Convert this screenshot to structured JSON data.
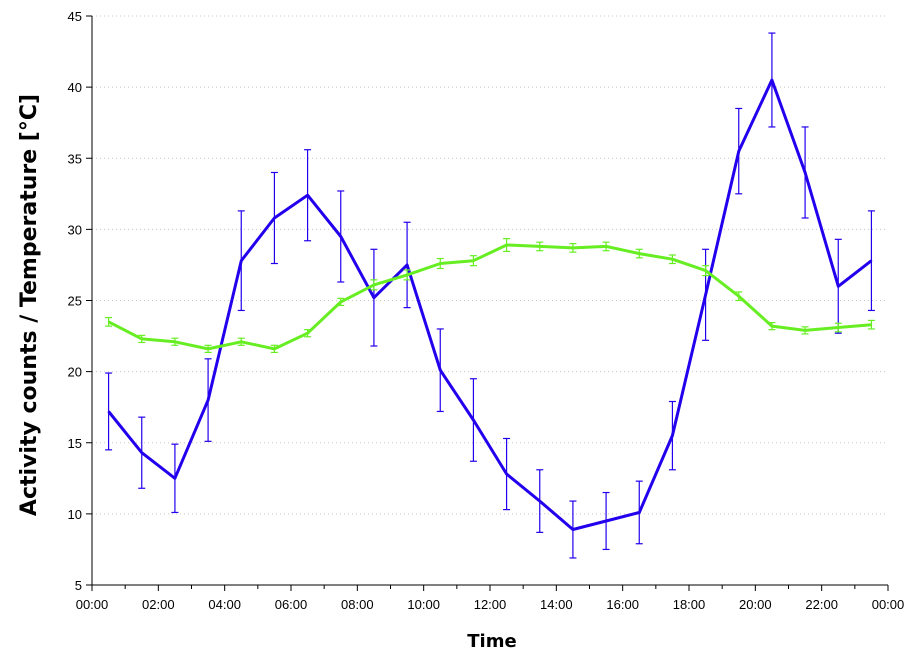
{
  "chart_data": {
    "type": "line",
    "xlabel": "Time",
    "ylabel": "Activity counts / Temperature [°C]",
    "x_tick_labels": [
      "00:00",
      "02:00",
      "04:00",
      "06:00",
      "08:00",
      "10:00",
      "12:00",
      "14:00",
      "16:00",
      "18:00",
      "20:00",
      "22:00",
      "00:00"
    ],
    "y_ticks": [
      5,
      10,
      15,
      20,
      25,
      30,
      35,
      40,
      45
    ],
    "xlim_hours": [
      0,
      24
    ],
    "ylim": [
      5,
      45
    ],
    "grid": "horizontal dotted",
    "legend": "none",
    "x_hours": [
      0.5,
      1.5,
      2.5,
      3.5,
      4.5,
      5.5,
      6.5,
      7.5,
      8.5,
      9.5,
      10.5,
      11.5,
      12.5,
      13.5,
      14.5,
      15.5,
      16.5,
      17.5,
      18.5,
      19.5,
      20.5,
      21.5,
      22.5,
      23.5
    ],
    "series": [
      {
        "color": "#2200ee",
        "values": [
          17.2,
          14.3,
          12.5,
          18.0,
          27.8,
          30.8,
          32.4,
          29.5,
          25.2,
          27.5,
          20.1,
          16.6,
          12.8,
          10.9,
          8.9,
          9.5,
          10.1,
          15.5,
          25.4,
          35.5,
          40.5,
          34.0,
          26.0,
          27.8
        ],
        "errors": [
          2.7,
          2.5,
          2.4,
          2.9,
          3.5,
          3.2,
          3.2,
          3.2,
          3.4,
          3.0,
          2.9,
          2.9,
          2.5,
          2.2,
          2.0,
          2.0,
          2.2,
          2.4,
          3.2,
          3.0,
          3.3,
          3.2,
          3.3,
          3.5
        ]
      },
      {
        "color": "#66ee22",
        "values": [
          23.5,
          22.3,
          22.1,
          21.6,
          22.1,
          21.6,
          22.7,
          24.9,
          26.1,
          26.8,
          27.6,
          27.8,
          28.9,
          28.8,
          28.7,
          28.8,
          28.3,
          27.9,
          27.1,
          25.3,
          23.2,
          22.9,
          23.1,
          23.3
        ],
        "errors": [
          0.3,
          0.25,
          0.25,
          0.25,
          0.25,
          0.25,
          0.25,
          0.25,
          0.35,
          0.35,
          0.35,
          0.35,
          0.45,
          0.3,
          0.3,
          0.3,
          0.3,
          0.3,
          0.35,
          0.3,
          0.25,
          0.25,
          0.3,
          0.3
        ]
      }
    ]
  }
}
